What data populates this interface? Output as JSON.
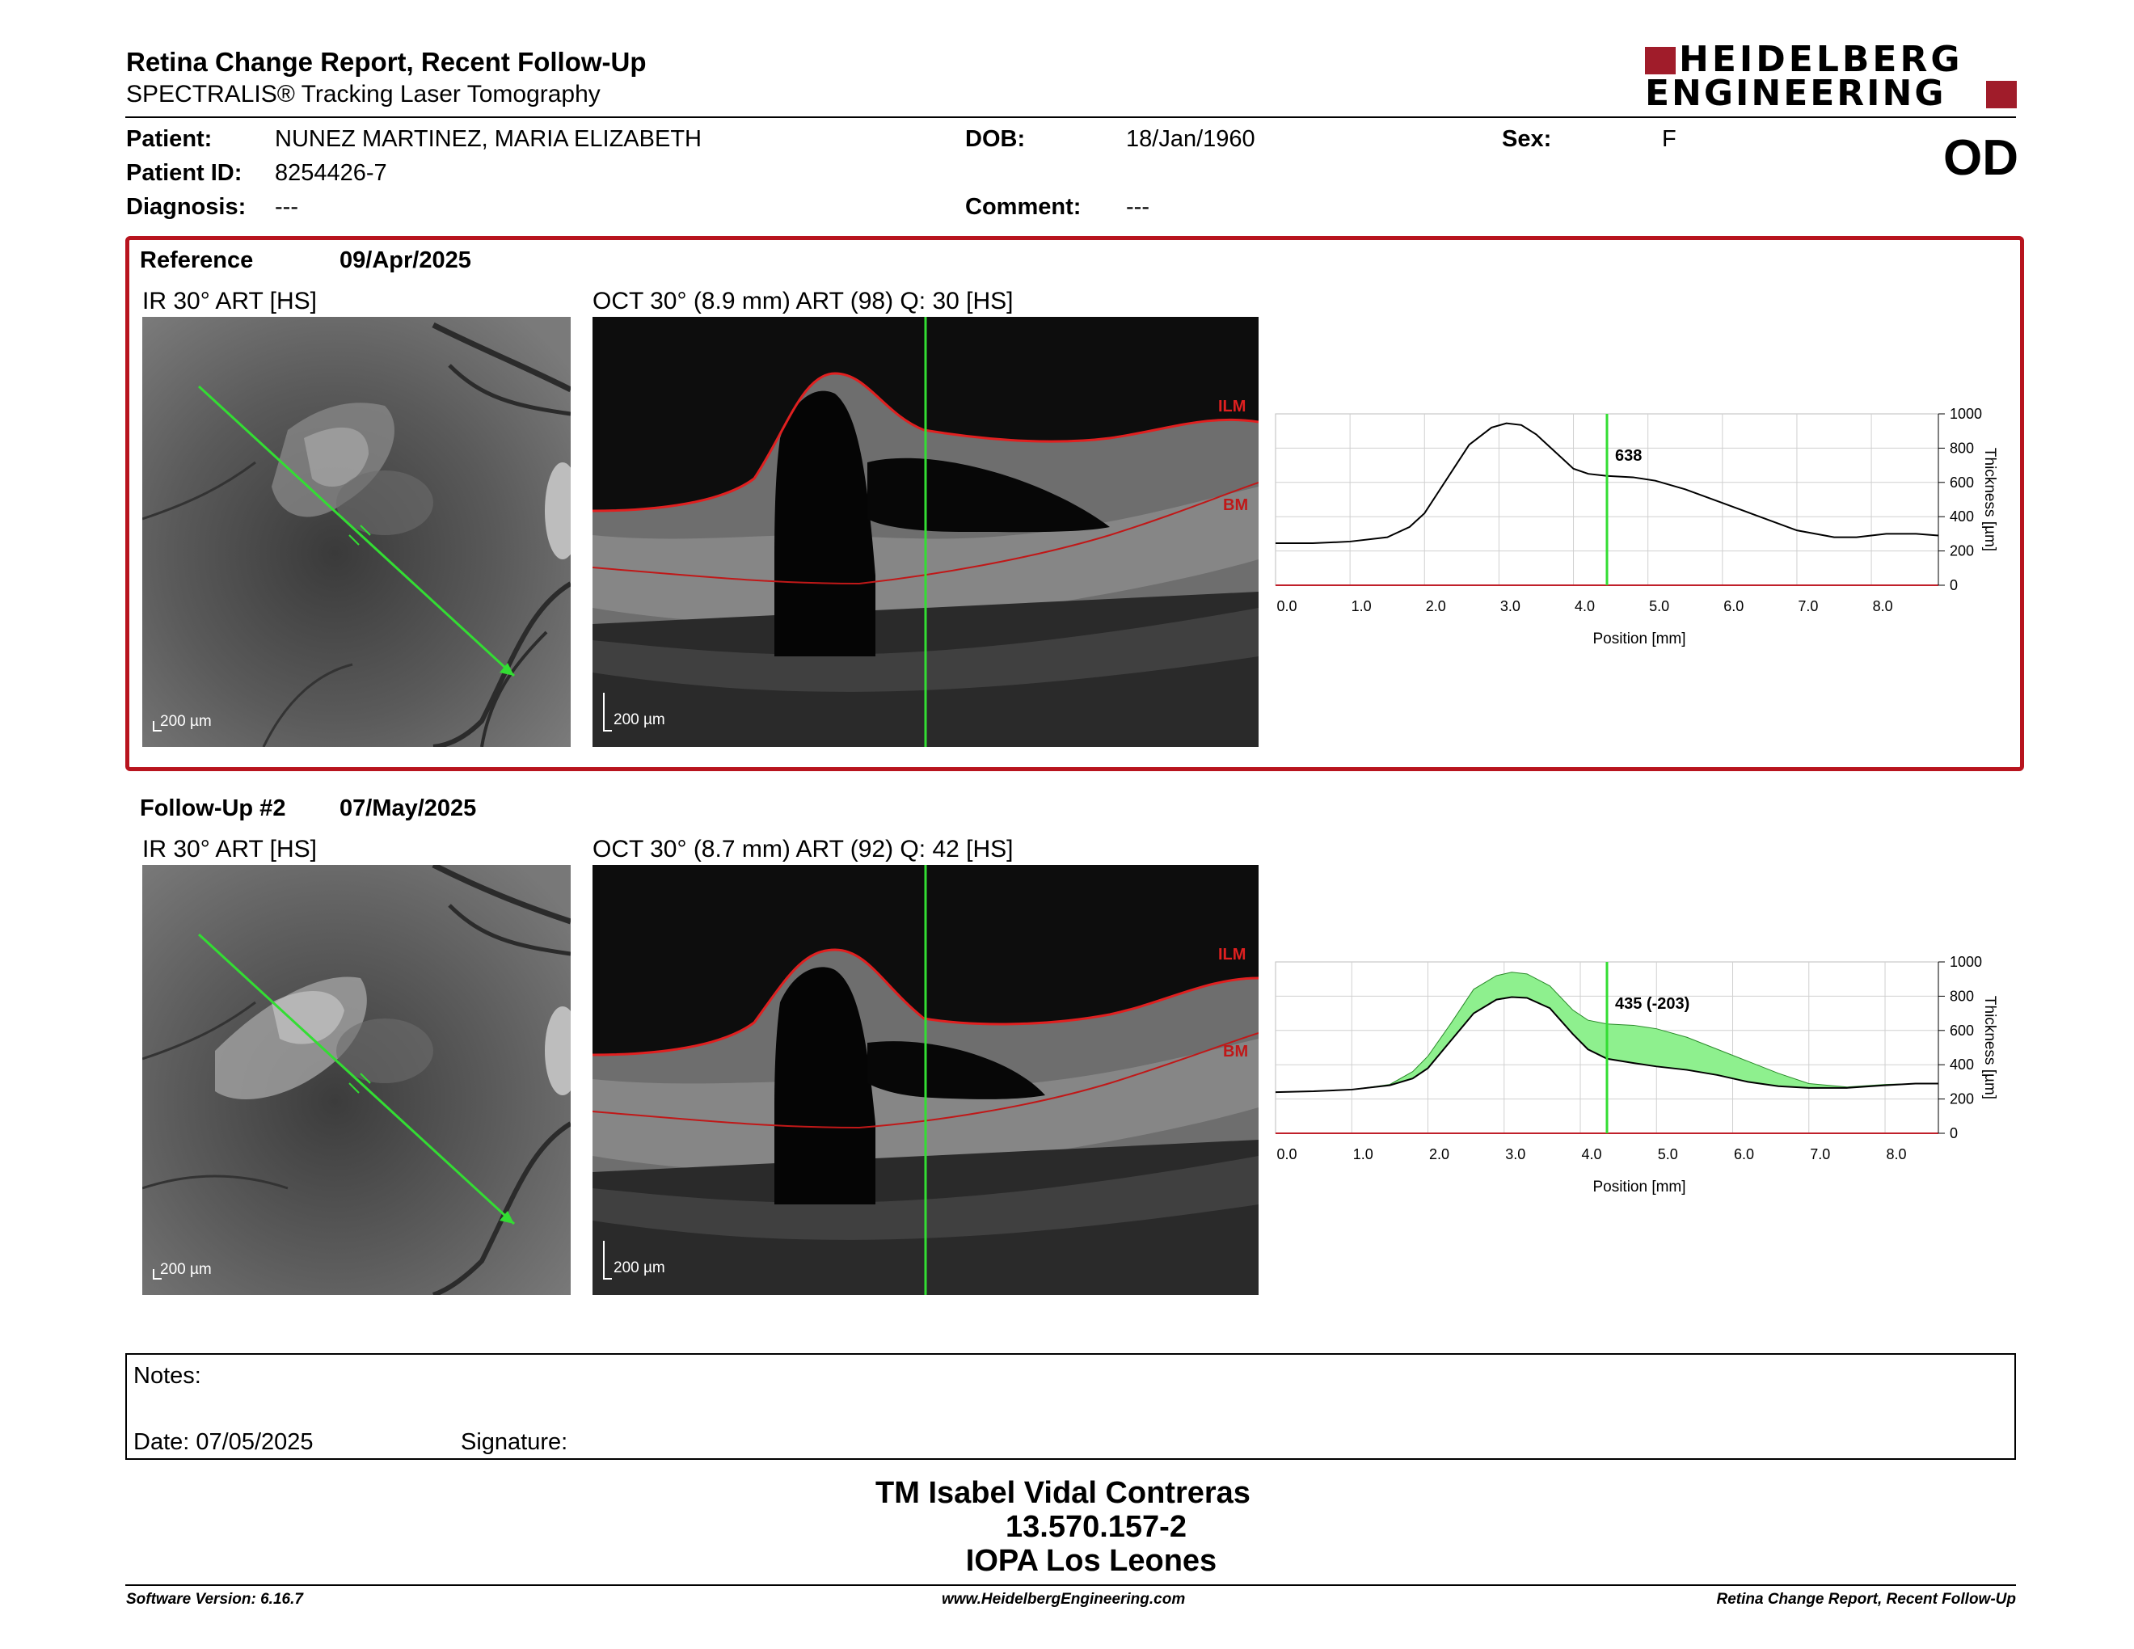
{
  "header": {
    "title": "Retina Change Report, Recent Follow-Up",
    "subtitle": "SPECTRALIS® Tracking Laser Tomography",
    "logo_line1": "HEIDELBERG",
    "logo_line2": "ENGINEERING"
  },
  "patient": {
    "patient_label": "Patient:",
    "patient_value": "NUNEZ MARTINEZ, MARIA ELIZABETH",
    "id_label": "Patient ID:",
    "id_value": "8254426-7",
    "diagnosis_label": "Diagnosis:",
    "diagnosis_value": "---",
    "dob_label": "DOB:",
    "dob_value": "18/Jan/1960",
    "comment_label": "Comment:",
    "comment_value": "---",
    "sex_label": "Sex:",
    "sex_value": "F",
    "eye": "OD"
  },
  "reference": {
    "label": "Reference",
    "date": "09/Apr/2025",
    "ir_caption": "IR 30° ART [HS]",
    "oct_caption": "OCT 30° (8.9 mm) ART (98) Q: 30 [HS]",
    "scale_ir": "200 µm",
    "scale_oct": "200 µm",
    "ilm": "ILM",
    "bm": "BM",
    "marker_value": "638"
  },
  "followup": {
    "label": "Follow-Up #2",
    "date": "07/May/2025",
    "ir_caption": "IR 30° ART [HS]",
    "oct_caption": "OCT 30° (8.7 mm) ART (92) Q: 42 [HS]",
    "scale_ir": "200 µm",
    "scale_oct": "200 µm",
    "ilm": "ILM",
    "bm": "BM",
    "marker_value": "435 (-203)"
  },
  "chart_data": [
    {
      "type": "line",
      "name_ref": "reference-thickness-profile",
      "xlabel": "Position [mm]",
      "ylabel": "Thickness [µm]",
      "xlim": [
        0,
        8.9
      ],
      "ylim": [
        0,
        1000
      ],
      "x_ticks": [
        "0.0",
        "1.0",
        "2.0",
        "3.0",
        "4.0",
        "5.0",
        "6.0",
        "7.0",
        "8.0"
      ],
      "y_ticks": [
        "0",
        "200",
        "400",
        "600",
        "800",
        "1000"
      ],
      "marker_x": 4.45,
      "marker_label": "638",
      "grid": true,
      "series": [
        {
          "x": [
            0,
            0.5,
            1.0,
            1.5,
            1.8,
            2.0,
            2.3,
            2.6,
            2.9,
            3.1,
            3.3,
            3.5,
            3.8,
            4.0,
            4.2,
            4.45,
            4.8,
            5.1,
            5.5,
            6.0,
            6.5,
            7.0,
            7.5,
            7.8,
            8.2,
            8.6,
            8.9
          ],
          "values": [
            245,
            245,
            255,
            280,
            340,
            420,
            620,
            820,
            920,
            945,
            935,
            880,
            760,
            680,
            650,
            638,
            630,
            610,
            560,
            480,
            400,
            320,
            280,
            280,
            300,
            300,
            290
          ]
        }
      ]
    },
    {
      "type": "area",
      "name_ref": "followup-thickness-profile",
      "xlabel": "Position [mm]",
      "ylabel": "Thickness [µm]",
      "xlim": [
        0,
        8.7
      ],
      "ylim": [
        0,
        1000
      ],
      "x_ticks": [
        "0.0",
        "1.0",
        "2.0",
        "3.0",
        "4.0",
        "5.0",
        "6.0",
        "7.0",
        "8.0"
      ],
      "y_ticks": [
        "0",
        "200",
        "400",
        "600",
        "800",
        "1000"
      ],
      "marker_x": 4.35,
      "marker_label": "435 (-203)",
      "grid": true,
      "series": [
        {
          "x": [
            0,
            0.5,
            1.0,
            1.5,
            1.8,
            2.0,
            2.3,
            2.6,
            2.9,
            3.1,
            3.3,
            3.6,
            3.9,
            4.1,
            4.35,
            4.7,
            5.0,
            5.4,
            5.8,
            6.2,
            6.6,
            7.0,
            7.5,
            8.0,
            8.4,
            8.7
          ],
          "values": [
            240,
            245,
            255,
            285,
            360,
            450,
            640,
            840,
            920,
            940,
            930,
            860,
            720,
            660,
            638,
            630,
            610,
            560,
            490,
            420,
            350,
            290,
            270,
            285,
            290,
            290
          ]
        },
        {
          "x": [
            0,
            0.5,
            1.0,
            1.5,
            1.8,
            2.0,
            2.3,
            2.6,
            2.9,
            3.1,
            3.3,
            3.6,
            3.9,
            4.1,
            4.35,
            4.7,
            5.0,
            5.4,
            5.8,
            6.2,
            6.6,
            7.0,
            7.5,
            8.0,
            8.4,
            8.7
          ],
          "values": [
            240,
            245,
            255,
            280,
            320,
            380,
            540,
            700,
            780,
            795,
            790,
            730,
            580,
            490,
            435,
            410,
            390,
            370,
            340,
            300,
            275,
            265,
            265,
            280,
            290,
            290
          ]
        }
      ]
    }
  ],
  "notes": {
    "notes_label": "Notes:",
    "date_label": "Date: 07/05/2025",
    "signature_label": "Signature:"
  },
  "signature_block": {
    "line1": "TM Isabel Vidal Contreras",
    "line2": "13.570.157-2",
    "line3": "IOPA Los Leones"
  },
  "footer": {
    "software": "Software Version: 6.16.7",
    "website": "www.HeidelbergEngineering.com",
    "report": "Retina Change Report, Recent Follow-Up"
  },
  "colors": {
    "accent_red": "#b8141e",
    "scan_green": "#33dd33",
    "diff_fill": "#8ef08e"
  }
}
